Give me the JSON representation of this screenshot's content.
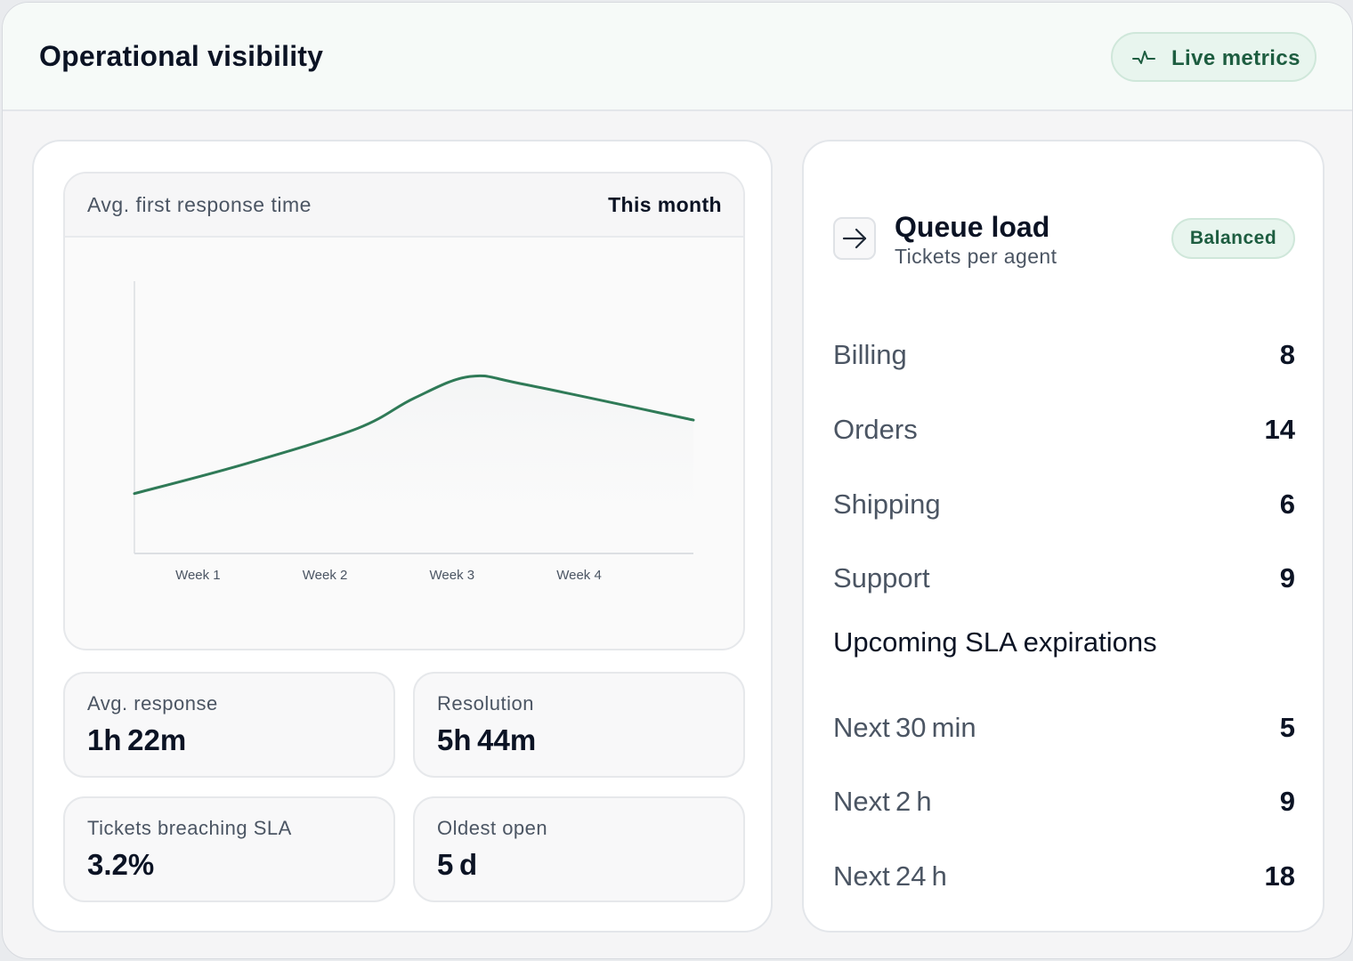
{
  "header": {
    "title": "Operational visibility",
    "live_label": "Live metrics"
  },
  "chart_panel": {
    "title": "Avg. first response time",
    "period": "This month"
  },
  "chart_data": {
    "type": "line",
    "title": "Avg. first response time",
    "categories": [
      "Week 1",
      "Week 2",
      "Week 3",
      "Week 4"
    ],
    "x": [
      0,
      0.2,
      0.4,
      0.5,
      0.6,
      0.7,
      1.0
    ],
    "series": [
      {
        "values": [
          0.22,
          0.33,
          0.46,
          0.57,
          0.65,
          0.62,
          0.49
        ]
      }
    ],
    "ylim": [
      0,
      1
    ],
    "xlabel": "",
    "ylabel": "",
    "grid": false,
    "color": "#2f7a57"
  },
  "stats": [
    {
      "label": "Avg. response",
      "value": "1h 22m"
    },
    {
      "label": "Resolution",
      "value": "5h 44m"
    },
    {
      "label": "Tickets breaching SLA",
      "value": "3.2%"
    },
    {
      "label": "Oldest open",
      "value": "5 d"
    }
  ],
  "queue": {
    "title": "Queue load",
    "subtitle": "Tickets per agent",
    "badge": "Balanced",
    "rows": [
      {
        "label": "Billing",
        "value": "8"
      },
      {
        "label": "Orders",
        "value": "14"
      },
      {
        "label": "Shipping",
        "value": "6"
      },
      {
        "label": "Support",
        "value": "9"
      }
    ]
  },
  "sla": {
    "heading": "Upcoming SLA expirations",
    "rows": [
      {
        "label": "Next 30 min",
        "value": "5"
      },
      {
        "label": "Next 2 h",
        "value": "9"
      },
      {
        "label": "Next 24 h",
        "value": "18"
      }
    ]
  },
  "icons": {
    "live": "pulse-icon",
    "queue": "arrow-right-icon"
  },
  "colors": {
    "accent": "#2f7a57",
    "badge_bg": "#e8f5ee",
    "badge_text": "#1d5d40"
  }
}
